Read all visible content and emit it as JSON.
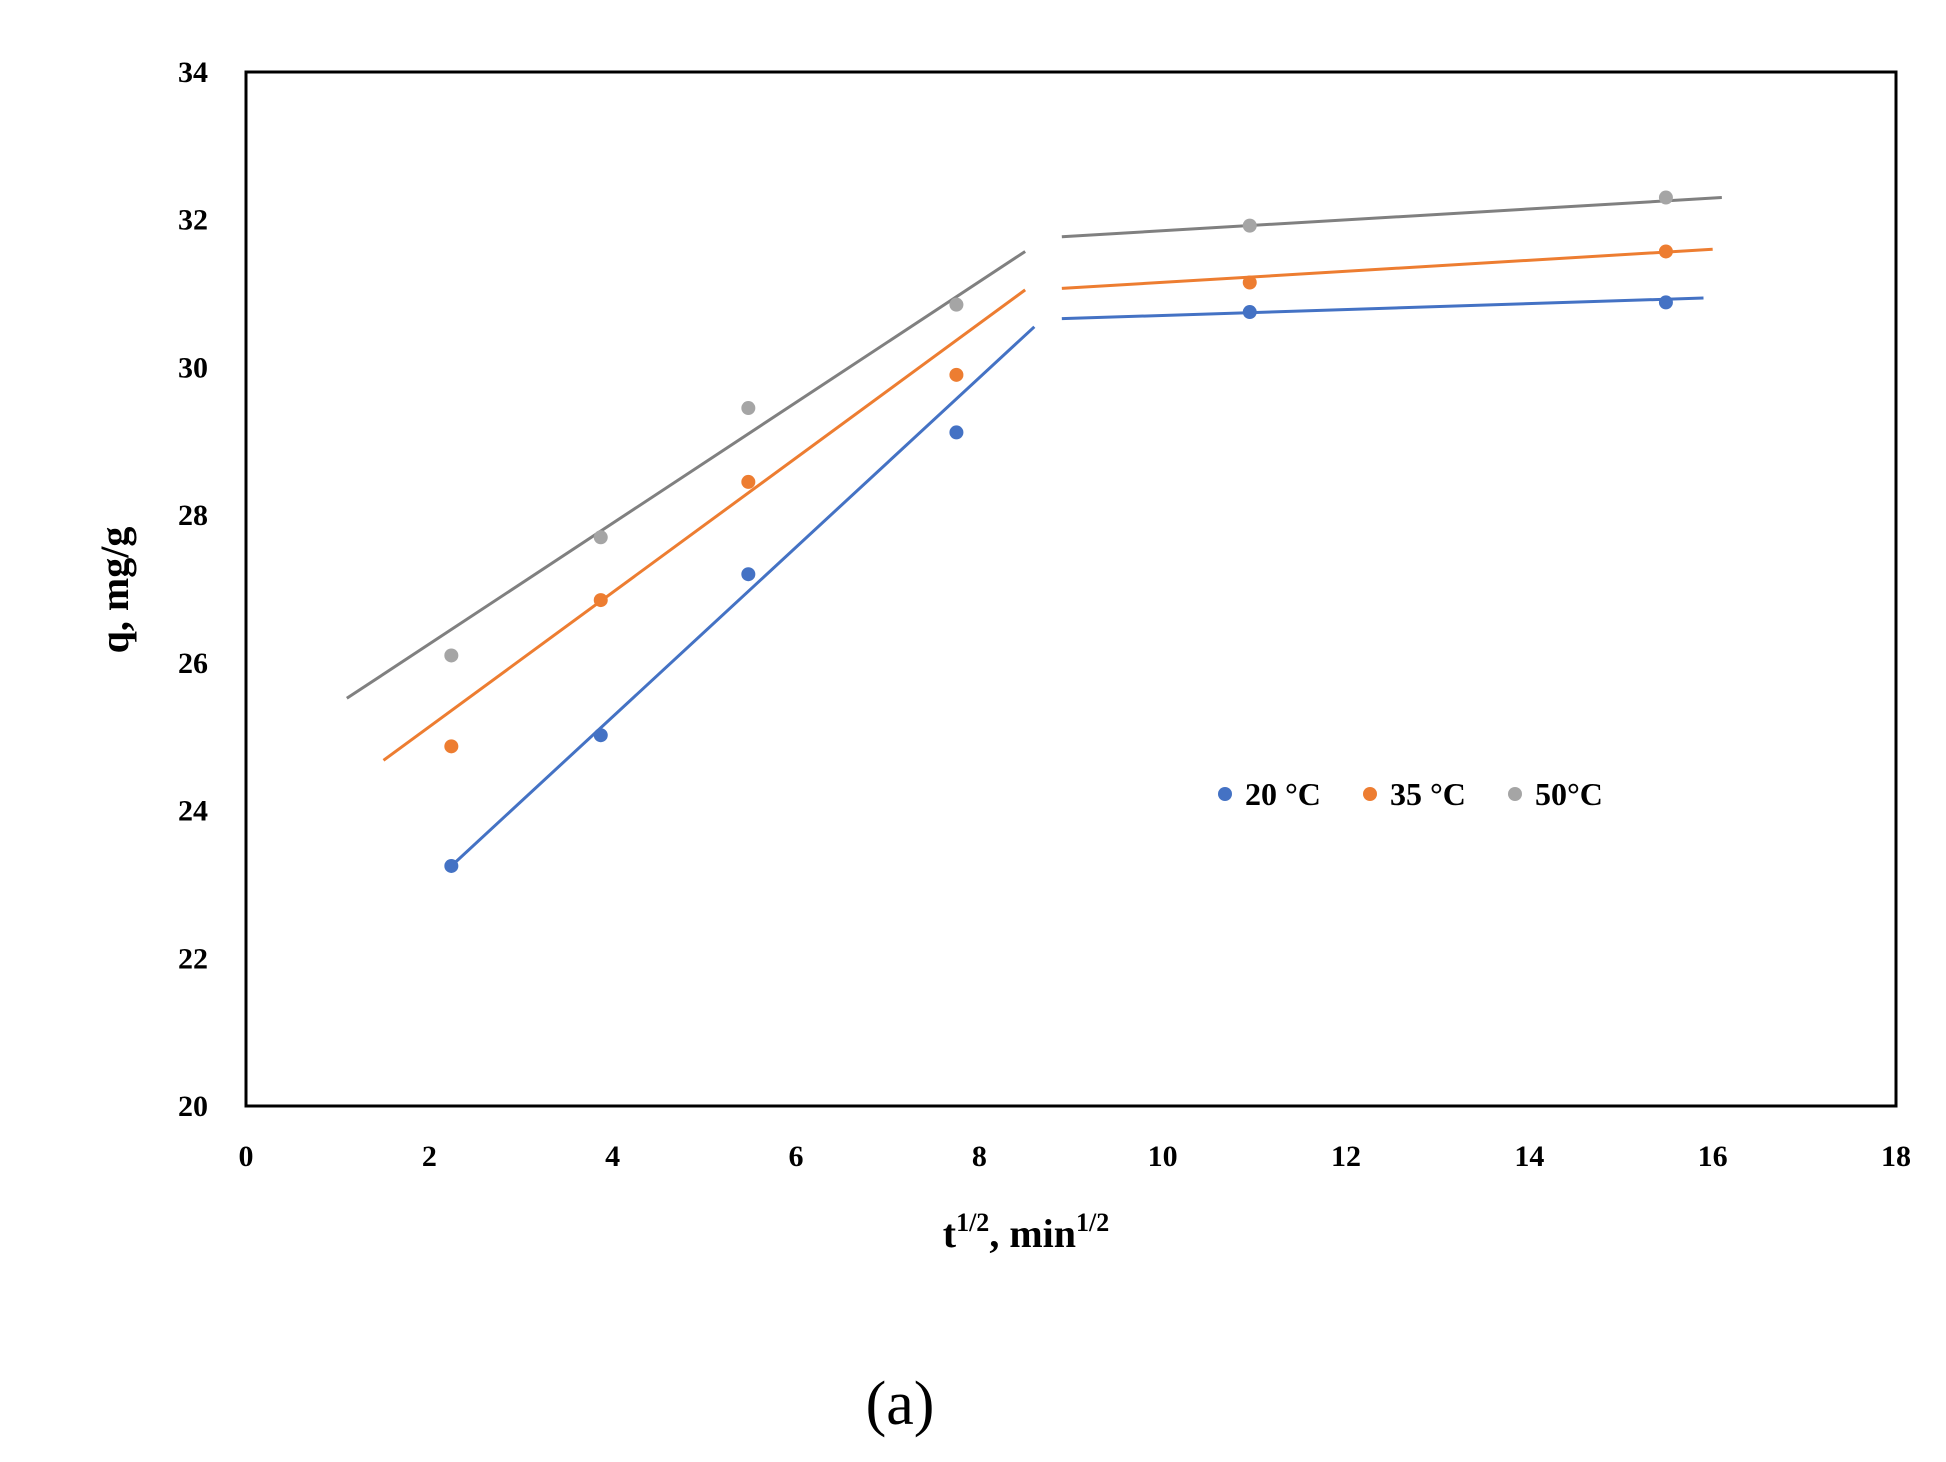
{
  "chart_data": {
    "type": "scatter",
    "title": "",
    "xlabel": "t",
    "xlabel_sup": "1/2",
    "xlabel_mid": ", min",
    "xlabel_sup2": "1/2",
    "ylabel": "q, mg/g",
    "xlim": [
      0,
      18
    ],
    "ylim": [
      20,
      34
    ],
    "xticks": [
      0,
      2,
      4,
      6,
      8,
      10,
      12,
      14,
      16,
      18
    ],
    "yticks": [
      20,
      22,
      24,
      26,
      28,
      30,
      32,
      34
    ],
    "grid": false,
    "legend_position": "center-right",
    "panel_label": "(a)",
    "series": [
      {
        "name": "20 °C",
        "color": "#4472C4",
        "x": [
          2.24,
          3.87,
          5.48,
          7.75,
          10.95,
          15.49
        ],
        "y": [
          23.25,
          25.02,
          27.2,
          29.12,
          30.75,
          30.88
        ],
        "trendlines": [
          {
            "x": [
              2.24,
              8.6
            ],
            "y": [
              23.25,
              30.55
            ]
          },
          {
            "x": [
              8.9,
              15.9
            ],
            "y": [
              30.66,
              30.94
            ]
          }
        ]
      },
      {
        "name": "35 °C",
        "color": "#ED7D31",
        "x": [
          2.24,
          3.87,
          5.48,
          7.75,
          10.95,
          15.49
        ],
        "y": [
          24.87,
          26.85,
          28.45,
          29.9,
          31.15,
          31.57
        ],
        "trendlines": [
          {
            "x": [
              1.5,
              8.5
            ],
            "y": [
              24.68,
              31.05
            ]
          },
          {
            "x": [
              8.9,
              16.0
            ],
            "y": [
              31.07,
              31.6
            ]
          }
        ]
      },
      {
        "name": "50°C",
        "color": "#A5A5A5",
        "x": [
          2.24,
          3.87,
          5.48,
          7.75,
          10.95,
          15.49
        ],
        "y": [
          26.1,
          27.7,
          29.45,
          30.85,
          31.92,
          32.3
        ],
        "trendlines": [
          {
            "x": [
              1.1,
              8.5
            ],
            "y": [
              25.52,
              31.57
            ]
          },
          {
            "x": [
              8.9,
              16.1
            ],
            "y": [
              31.77,
              32.3
            ]
          }
        ],
        "trendline_color": "#808080"
      }
    ]
  }
}
